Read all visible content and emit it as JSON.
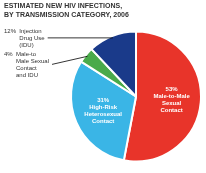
{
  "chart_data": {
    "type": "pie",
    "title": "ESTIMATED NEW HIV INFECTIONS,\nBY TRANSMISSION CATEGORY, 2006",
    "categories": [
      "Male-to-Male\nSexual\nContact",
      "High-Risk\nHeterosexual\nContact",
      "Male-to\nMale Sexual\nContact\nand IDU",
      "Injection\nDrug Use\n(IDU)"
    ],
    "values": [
      53,
      31,
      4,
      12
    ],
    "value_labels": [
      "53%",
      "31%",
      "4%",
      "12%"
    ],
    "colors": [
      "#e8342a",
      "#3ab5e6",
      "#4aaa4a",
      "#1a3a8a"
    ],
    "data_labels": true
  }
}
